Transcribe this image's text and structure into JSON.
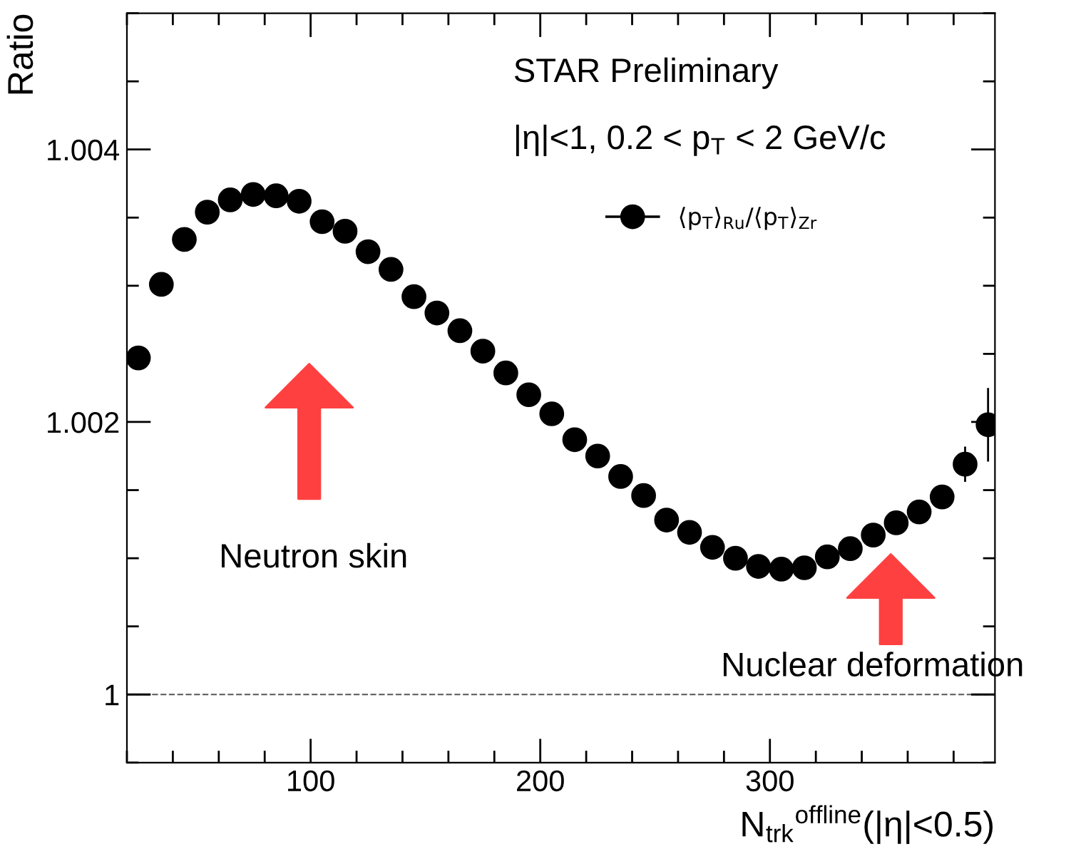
{
  "chart_data": {
    "type": "scatter",
    "xlabel": "N$_{trk}$$^{offline}$(|η|<0.5)",
    "ylabel": "Ratio",
    "x": [
      25,
      35,
      45,
      55,
      65,
      75,
      85,
      95,
      105,
      115,
      125,
      135,
      145,
      155,
      165,
      175,
      185,
      195,
      205,
      215,
      225,
      235,
      245,
      255,
      265,
      275,
      285,
      295,
      305,
      315,
      325,
      335,
      345,
      355,
      365,
      375,
      385,
      395
    ],
    "series": [
      {
        "name": "⟨p$_{T}$⟩$_{Ru}$/⟨p$_{T}$⟩$_{Zr}$",
        "color": "#000000",
        "values": [
          1.00247,
          1.00301,
          1.00334,
          1.00354,
          1.00363,
          1.00367,
          1.00366,
          1.00362,
          1.00347,
          1.0034,
          1.00325,
          1.00312,
          1.00292,
          1.0028,
          1.00267,
          1.00252,
          1.00236,
          1.0022,
          1.00206,
          1.00187,
          1.00175,
          1.0016,
          1.00146,
          1.00128,
          1.00119,
          1.00108,
          1.001,
          1.00094,
          1.00092,
          1.00093,
          1.00101,
          1.00107,
          1.00117,
          1.00126,
          1.00134,
          1.00145,
          1.00169,
          1.00198
        ],
        "errors": [
          null,
          null,
          null,
          null,
          null,
          null,
          null,
          null,
          null,
          null,
          null,
          null,
          null,
          null,
          null,
          null,
          null,
          null,
          null,
          null,
          null,
          null,
          null,
          null,
          null,
          null,
          null,
          null,
          null,
          null,
          null,
          null,
          null,
          null,
          null,
          5e-05,
          0.00013,
          0.00027
        ]
      }
    ],
    "xlim": [
      20,
      398
    ],
    "ylim": [
      0.9995,
      1.005
    ],
    "xticks": [
      100,
      200,
      300
    ],
    "yticks": [
      1,
      1.002,
      1.004
    ],
    "marker": "circle",
    "legend": "top right",
    "grid": false,
    "ref_lines": [
      {
        "axis": "y",
        "value": 1,
        "color": "#555555",
        "line_style": "dashed"
      }
    ],
    "annotations": [
      "STAR Preliminary",
      "|η|<1, 0.2 < p$_{T}$ < 2 GeV/c",
      "Neutron skin",
      "Nuclear deformation"
    ]
  }
}
